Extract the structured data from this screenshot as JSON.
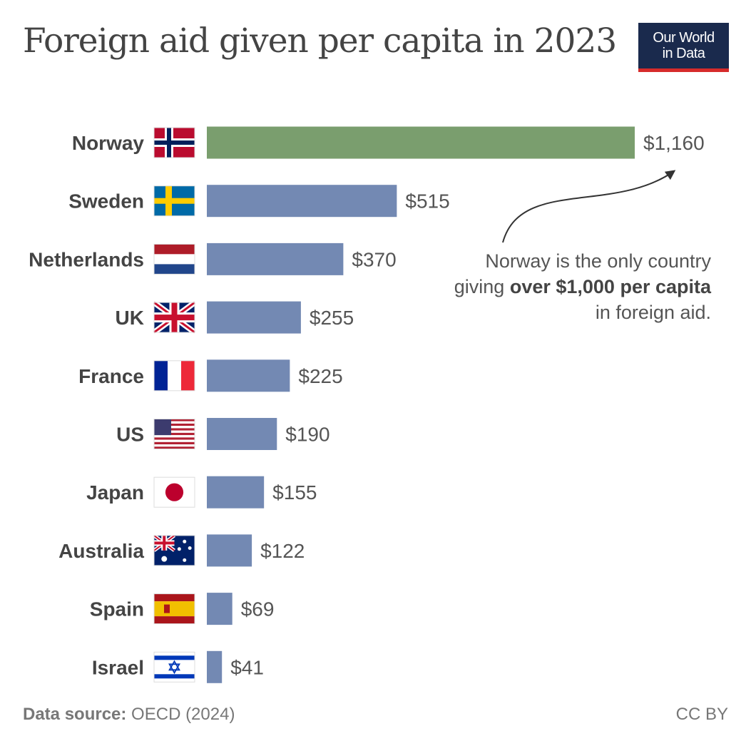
{
  "header": {
    "title": "Foreign aid given per capita in 2023",
    "logo_line1": "Our World",
    "logo_line2": "in Data"
  },
  "annotation": {
    "line1": "Norway is the only country",
    "line2_prefix": "giving ",
    "line2_bold": "over $1,000 per capita",
    "line3": "in foreign aid."
  },
  "footer": {
    "source_label": "Data source:",
    "source_value": " OECD (2024)",
    "license": "CC BY"
  },
  "colors": {
    "highlight": "#7a9e6e",
    "bar": "#7389b3",
    "logo_bg": "#1a2a4d",
    "logo_accent": "#d62b2b"
  },
  "chart_data": {
    "type": "bar",
    "orientation": "horizontal",
    "categories": [
      "Norway",
      "Sweden",
      "Netherlands",
      "UK",
      "France",
      "US",
      "Japan",
      "Australia",
      "Spain",
      "Israel"
    ],
    "values": [
      1160,
      515,
      370,
      255,
      225,
      190,
      155,
      122,
      69,
      41
    ],
    "value_labels": [
      "$1,160",
      "$515",
      "$370",
      "$255",
      "$225",
      "$190",
      "$155",
      "$122",
      "$69",
      "$41"
    ],
    "flags": [
      "norway-flag",
      "sweden-flag",
      "netherlands-flag",
      "uk-flag",
      "france-flag",
      "us-flag",
      "japan-flag",
      "australia-flag",
      "spain-flag",
      "israel-flag"
    ],
    "highlighted_category": "Norway",
    "xlim": [
      0,
      1160
    ],
    "grid": false
  }
}
